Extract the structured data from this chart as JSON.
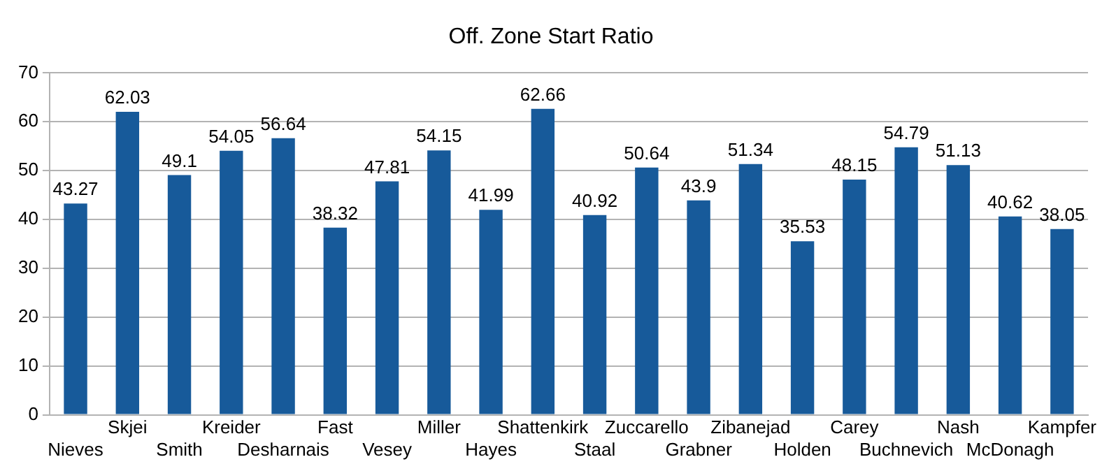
{
  "chart_data": {
    "type": "bar",
    "title": "Off. Zone Start Ratio",
    "categories": [
      "Nieves",
      "Skjei",
      "Smith",
      "Kreider",
      "Desharnais",
      "Fast",
      "Vesey",
      "Miller",
      "Hayes",
      "Shattenkirk",
      "Staal",
      "Zuccarello",
      "Grabner",
      "Zibanejad",
      "Holden",
      "Carey",
      "Buchnevich",
      "Nash",
      "McDonagh",
      "Kampfer"
    ],
    "values": [
      43.27,
      62.03,
      49.1,
      54.05,
      56.64,
      38.32,
      47.81,
      54.15,
      41.99,
      62.66,
      40.92,
      50.64,
      43.9,
      51.34,
      35.53,
      48.15,
      54.79,
      51.13,
      40.62,
      38.05
    ],
    "color": "#175a9a",
    "ylim": [
      0,
      70
    ],
    "yticks": [
      0,
      10,
      20,
      30,
      40,
      50,
      60,
      70
    ],
    "grid": "y",
    "data_labels": true,
    "legend": false
  }
}
